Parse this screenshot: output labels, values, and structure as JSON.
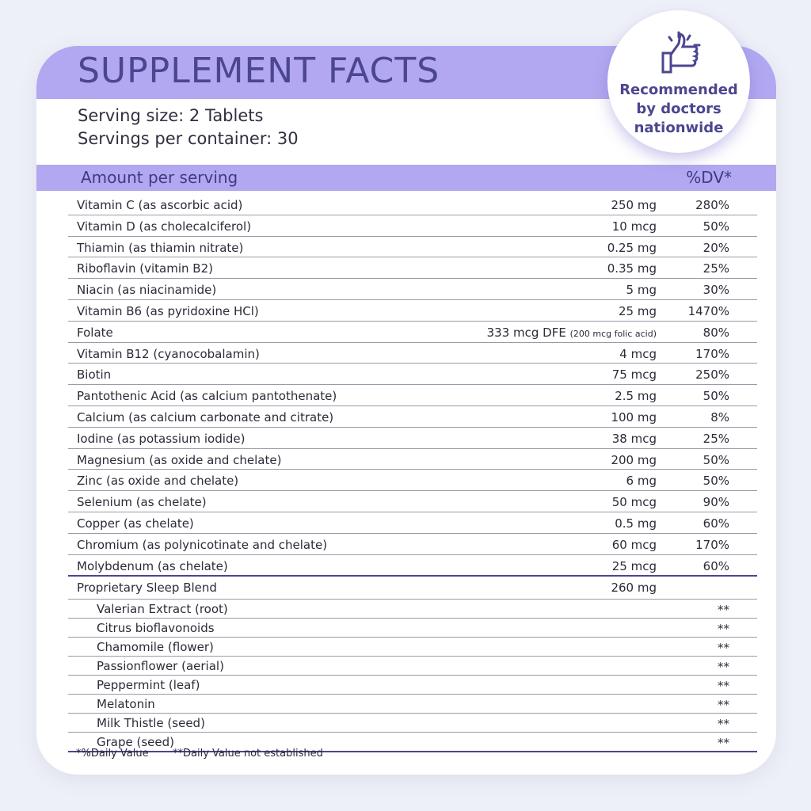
{
  "title": "SUPPLEMENT FACTS",
  "serving_size": "Serving size: 2 Tablets",
  "servings_per_container": "Servings per container: 30",
  "badge": {
    "icon": "thumbs-up-icon",
    "lines": [
      "Recommended",
      "by doctors",
      "nationwide"
    ]
  },
  "band": {
    "left": "Amount per serving",
    "right": "%DV*"
  },
  "nutrients": [
    {
      "name": "Vitamin C (as ascorbic acid)",
      "amount": "250 mg",
      "dv": "280%"
    },
    {
      "name": "Vitamin D (as cholecalciferol)",
      "amount": "10 mcg",
      "dv": "50%"
    },
    {
      "name": "Thiamin (as thiamin nitrate)",
      "amount": "0.25 mg",
      "dv": "20%"
    },
    {
      "name": "Riboflavin (vitamin B2)",
      "amount": "0.35 mg",
      "dv": "25%"
    },
    {
      "name": "Niacin (as niacinamide)",
      "amount": "5 mg",
      "dv": "30%"
    },
    {
      "name": "Vitamin B6 (as pyridoxine HCl)",
      "amount": "25 mg",
      "dv": "1470%"
    },
    {
      "name": "Folate",
      "amount": "333 mcg DFE",
      "amount_note": "(200 mcg folic acid)",
      "dv": "80%"
    },
    {
      "name": "Vitamin B12 (cyanocobalamin)",
      "amount": "4 mcg",
      "dv": "170%"
    },
    {
      "name": "Biotin",
      "amount": "75 mcg",
      "dv": "250%"
    },
    {
      "name": "Pantothenic Acid (as calcium pantothenate)",
      "amount": "2.5 mg",
      "dv": "50%"
    },
    {
      "name": "Calcium (as calcium carbonate and citrate)",
      "amount": "100 mg",
      "dv": "8%"
    },
    {
      "name": "Iodine (as potassium iodide)",
      "amount": "38 mcg",
      "dv": "25%"
    },
    {
      "name": "Magnesium (as oxide and chelate)",
      "amount": "200 mg",
      "dv": "50%"
    },
    {
      "name": "Zinc (as oxide and chelate)",
      "amount": "6 mg",
      "dv": "50%"
    },
    {
      "name": "Selenium (as chelate)",
      "amount": "50 mcg",
      "dv": "90%"
    },
    {
      "name": "Copper (as chelate)",
      "amount": "0.5 mg",
      "dv": "60%"
    },
    {
      "name": "Chromium (as polynicotinate and chelate)",
      "amount": "60 mcg",
      "dv": "170%"
    },
    {
      "name": "Molybdenum (as chelate)",
      "amount": "25 mcg",
      "dv": "60%"
    }
  ],
  "blend": {
    "name": "Proprietary Sleep Blend",
    "amount": "260 mg",
    "items": [
      {
        "name": "Valerian Extract (root)",
        "dv": "**"
      },
      {
        "name": "Citrus bioflavonoids",
        "dv": "**"
      },
      {
        "name": "Chamomile (flower)",
        "dv": "**"
      },
      {
        "name": "Passionflower (aerial)",
        "dv": "**"
      },
      {
        "name": "Peppermint (leaf)",
        "dv": "**"
      },
      {
        "name": "Melatonin",
        "dv": "**"
      },
      {
        "name": "Milk Thistle (seed)",
        "dv": "**"
      },
      {
        "name": "Grape (seed)",
        "dv": "**"
      }
    ]
  },
  "footnotes": [
    "*%Daily Value",
    "**Daily Value not established"
  ]
}
